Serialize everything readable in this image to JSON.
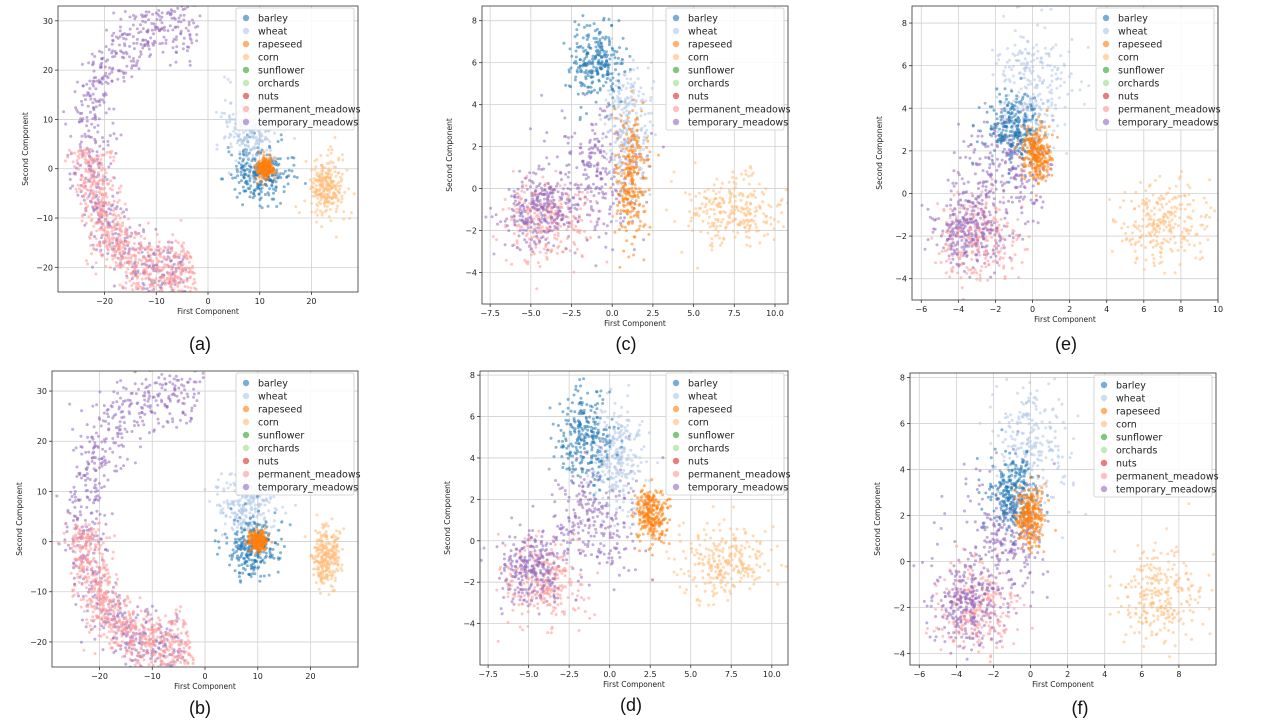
{
  "figure": {
    "legend": [
      {
        "name": "barley",
        "color": "#1f77b4"
      },
      {
        "name": "wheat",
        "color": "#aec7e8"
      },
      {
        "name": "rapeseed",
        "color": "#ff7f0e"
      },
      {
        "name": "corn",
        "color": "#ffbb78"
      },
      {
        "name": "sunflower",
        "color": "#2ca02c"
      },
      {
        "name": "orchards",
        "color": "#98df8a"
      },
      {
        "name": "nuts",
        "color": "#d62728"
      },
      {
        "name": "permanent_meadows",
        "color": "#ff9896"
      },
      {
        "name": "temporary_meadows",
        "color": "#9467bd"
      }
    ]
  },
  "chart_data": [
    {
      "id": "a",
      "caption": "(a)",
      "type": "scatter",
      "xlabel": "First Component",
      "ylabel": "Second Component",
      "xlim": [
        -29,
        29
      ],
      "ylim": [
        -25,
        33
      ],
      "xticks": [
        -20,
        -10,
        0,
        10,
        20
      ],
      "xtick_labels": [
        "−20",
        "−10",
        "0",
        "10",
        "20"
      ],
      "yticks": [
        -20,
        -10,
        0,
        10,
        20,
        30
      ],
      "ytick_labels": [
        "−20",
        "−10",
        "0",
        "10",
        "20",
        "30"
      ],
      "grid": true,
      "legend_position": "top-right",
      "clusters": [
        {
          "series": "temporary_meadows",
          "shape": "arc",
          "center": [
            -8,
            4
          ],
          "radius": 15,
          "arc_from_deg": 65,
          "arc_to_deg": 285,
          "spread": 2.0
        },
        {
          "series": "permanent_meadows",
          "shape": "arc",
          "center": [
            -8,
            4
          ],
          "radius": 15,
          "arc_from_deg": 180,
          "arc_to_deg": 290,
          "spread": 2.0
        },
        {
          "series": "corn",
          "center": [
            23,
            -4
          ],
          "sd": [
            1.6,
            3.0
          ]
        },
        {
          "series": "barley",
          "center": [
            10,
            -1
          ],
          "sd": [
            3.0,
            3.0
          ]
        },
        {
          "series": "wheat",
          "center": [
            8,
            8
          ],
          "sd": [
            2.5,
            3.5
          ]
        },
        {
          "series": "rapeseed",
          "center": [
            11,
            0
          ],
          "sd": [
            0.8,
            1.0
          ]
        }
      ]
    },
    {
      "id": "b",
      "caption": "(b)",
      "type": "scatter",
      "xlabel": "First Component",
      "ylabel": "Second Component",
      "xlim": [
        -29,
        29
      ],
      "ylim": [
        -25,
        34
      ],
      "xticks": [
        -20,
        -10,
        0,
        10,
        20
      ],
      "xtick_labels": [
        "−20",
        "−10",
        "0",
        "10",
        "20"
      ],
      "yticks": [
        -20,
        -10,
        0,
        10,
        20,
        30
      ],
      "ytick_labels": [
        "−20",
        "−10",
        "0",
        "10",
        "20",
        "30"
      ],
      "grid": true,
      "legend_position": "top-right",
      "clusters": [
        {
          "series": "temporary_meadows",
          "shape": "arc",
          "center": [
            -8,
            4
          ],
          "radius": 15,
          "arc_from_deg": 65,
          "arc_to_deg": 285,
          "spread": 2.0
        },
        {
          "series": "permanent_meadows",
          "shape": "arc",
          "center": [
            -8,
            4
          ],
          "radius": 15,
          "arc_from_deg": 180,
          "arc_to_deg": 290,
          "spread": 2.0
        },
        {
          "series": "corn",
          "center": [
            23,
            -3
          ],
          "sd": [
            1.4,
            3.0
          ]
        },
        {
          "series": "wheat",
          "center": [
            8,
            8
          ],
          "sd": [
            3.0,
            3.5
          ]
        },
        {
          "series": "barley",
          "center": [
            9,
            -1
          ],
          "sd": [
            2.5,
            3.0
          ]
        },
        {
          "series": "rapeseed",
          "center": [
            10,
            0
          ],
          "sd": [
            0.8,
            1.0
          ]
        }
      ]
    },
    {
      "id": "c",
      "caption": "(c)",
      "type": "scatter",
      "xlabel": "First Component",
      "ylabel": "Second Component",
      "xlim": [
        -8,
        10.8
      ],
      "ylim": [
        -5.5,
        8.7
      ],
      "xticks": [
        -7.5,
        -5,
        -2.5,
        0,
        2.5,
        5,
        7.5,
        10
      ],
      "xtick_labels": [
        "−7.5",
        "−5.0",
        "−2.5",
        "0.0",
        "2.5",
        "5.0",
        "7.5",
        "10.0"
      ],
      "yticks": [
        -4,
        -2,
        0,
        2,
        4,
        6,
        8
      ],
      "ytick_labels": [
        "−4",
        "−2",
        "0",
        "2",
        "4",
        "6",
        "8"
      ],
      "grid": true,
      "legend_position": "top-right",
      "clusters": [
        {
          "series": "corn",
          "center": [
            7.5,
            -1
          ],
          "sd": [
            1.5,
            0.8
          ]
        },
        {
          "series": "permanent_meadows",
          "center": [
            -4,
            -1.5
          ],
          "sd": [
            1.3,
            1.0
          ]
        },
        {
          "series": "temporary_meadows",
          "center": [
            -4.5,
            -1.0
          ],
          "sd": [
            1.1,
            0.9
          ]
        },
        {
          "series": "temporary_meadows",
          "center": [
            -1,
            0.5
          ],
          "sd": [
            1.5,
            1.5
          ]
        },
        {
          "series": "wheat",
          "center": [
            1,
            3
          ],
          "sd": [
            0.7,
            1.5
          ]
        },
        {
          "series": "barley",
          "center": [
            -1,
            6
          ],
          "sd": [
            0.8,
            0.9
          ]
        },
        {
          "series": "rapeseed",
          "center": [
            1.2,
            0.5
          ],
          "sd": [
            0.5,
            1.5
          ]
        }
      ]
    },
    {
      "id": "d",
      "caption": "(d)",
      "type": "scatter",
      "xlabel": "First Component",
      "ylabel": "Second Component",
      "xlim": [
        -8,
        11
      ],
      "ylim": [
        -6,
        8.2
      ],
      "xticks": [
        -7.5,
        -5,
        -2.5,
        0,
        2.5,
        5,
        7.5,
        10
      ],
      "xtick_labels": [
        "−7.5",
        "−5.0",
        "−2.5",
        "0.0",
        "2.5",
        "5.0",
        "7.5",
        "10.0"
      ],
      "yticks": [
        -4,
        -2,
        0,
        2,
        4,
        6,
        8
      ],
      "ytick_labels": [
        "−4",
        "−2",
        "0",
        "2",
        "4",
        "6",
        "8"
      ],
      "grid": true,
      "legend_position": "top-right",
      "clusters": [
        {
          "series": "corn",
          "center": [
            7,
            -1
          ],
          "sd": [
            1.6,
            0.9
          ]
        },
        {
          "series": "permanent_meadows",
          "center": [
            -4,
            -2
          ],
          "sd": [
            1.3,
            1.0
          ]
        },
        {
          "series": "temporary_meadows",
          "center": [
            -5,
            -1.3
          ],
          "sd": [
            1.0,
            0.9
          ]
        },
        {
          "series": "temporary_meadows",
          "center": [
            -1,
            1
          ],
          "sd": [
            1.5,
            1.5
          ]
        },
        {
          "series": "wheat",
          "center": [
            0.5,
            4
          ],
          "sd": [
            0.8,
            1.2
          ]
        },
        {
          "series": "barley",
          "center": [
            -1.5,
            5
          ],
          "sd": [
            0.8,
            1.2
          ]
        },
        {
          "series": "rapeseed",
          "center": [
            2.5,
            1.2
          ],
          "sd": [
            0.5,
            0.7
          ]
        }
      ]
    },
    {
      "id": "e",
      "caption": "(e)",
      "type": "scatter",
      "xlabel": "First Component",
      "ylabel": "Second Component",
      "xlim": [
        -6.5,
        10
      ],
      "ylim": [
        -5,
        8.8
      ],
      "xticks": [
        -6,
        -4,
        -2,
        0,
        2,
        4,
        6,
        8,
        10
      ],
      "xtick_labels": [
        "−6",
        "−4",
        "−2",
        "0",
        "2",
        "4",
        "6",
        "8",
        "10"
      ],
      "yticks": [
        -4,
        -2,
        0,
        2,
        4,
        6,
        8
      ],
      "ytick_labels": [
        "−4",
        "−2",
        "0",
        "2",
        "4",
        "6",
        "8"
      ],
      "grid": true,
      "legend_position": "top-right",
      "clusters": [
        {
          "series": "corn",
          "center": [
            7,
            -1.5
          ],
          "sd": [
            1.2,
            1.0
          ]
        },
        {
          "series": "permanent_meadows",
          "center": [
            -3,
            -2
          ],
          "sd": [
            1.0,
            1.0
          ]
        },
        {
          "series": "temporary_meadows",
          "center": [
            -3.5,
            -1.8
          ],
          "sd": [
            0.9,
            0.9
          ]
        },
        {
          "series": "temporary_meadows",
          "center": [
            -1.5,
            1
          ],
          "sd": [
            1.2,
            1.4
          ]
        },
        {
          "series": "wheat",
          "center": [
            0,
            5
          ],
          "sd": [
            1.0,
            1.5
          ]
        },
        {
          "series": "barley",
          "center": [
            -1,
            3
          ],
          "sd": [
            0.7,
            0.8
          ]
        },
        {
          "series": "rapeseed",
          "center": [
            0.2,
            1.8
          ],
          "sd": [
            0.4,
            0.6
          ]
        }
      ]
    },
    {
      "id": "f",
      "caption": "(f)",
      "type": "scatter",
      "xlabel": "First Component",
      "ylabel": "Second Component",
      "xlim": [
        -6.5,
        10
      ],
      "ylim": [
        -4.5,
        8.2
      ],
      "xticks": [
        -6,
        -4,
        -2,
        0,
        2,
        4,
        6,
        8
      ],
      "xtick_labels": [
        "−6",
        "−4",
        "−2",
        "0",
        "2",
        "4",
        "6",
        "8"
      ],
      "yticks": [
        -4,
        -2,
        0,
        2,
        4,
        6,
        8
      ],
      "ytick_labels": [
        "−4",
        "−2",
        "0",
        "2",
        "4",
        "6",
        "8"
      ],
      "grid": true,
      "legend_position": "top-right",
      "clusters": [
        {
          "series": "corn",
          "center": [
            7,
            -1.5
          ],
          "sd": [
            1.2,
            1.0
          ]
        },
        {
          "series": "permanent_meadows",
          "center": [
            -3,
            -2
          ],
          "sd": [
            1.0,
            1.0
          ]
        },
        {
          "series": "temporary_meadows",
          "center": [
            -3.5,
            -1.8
          ],
          "sd": [
            0.9,
            0.9
          ]
        },
        {
          "series": "temporary_meadows",
          "center": [
            -1.5,
            1
          ],
          "sd": [
            1.2,
            1.4
          ]
        },
        {
          "series": "wheat",
          "center": [
            0,
            5
          ],
          "sd": [
            1.0,
            1.5
          ]
        },
        {
          "series": "barley",
          "center": [
            -1,
            3
          ],
          "sd": [
            0.7,
            0.8
          ]
        },
        {
          "series": "rapeseed",
          "center": [
            0,
            2
          ],
          "sd": [
            0.4,
            0.7
          ]
        }
      ]
    }
  ]
}
